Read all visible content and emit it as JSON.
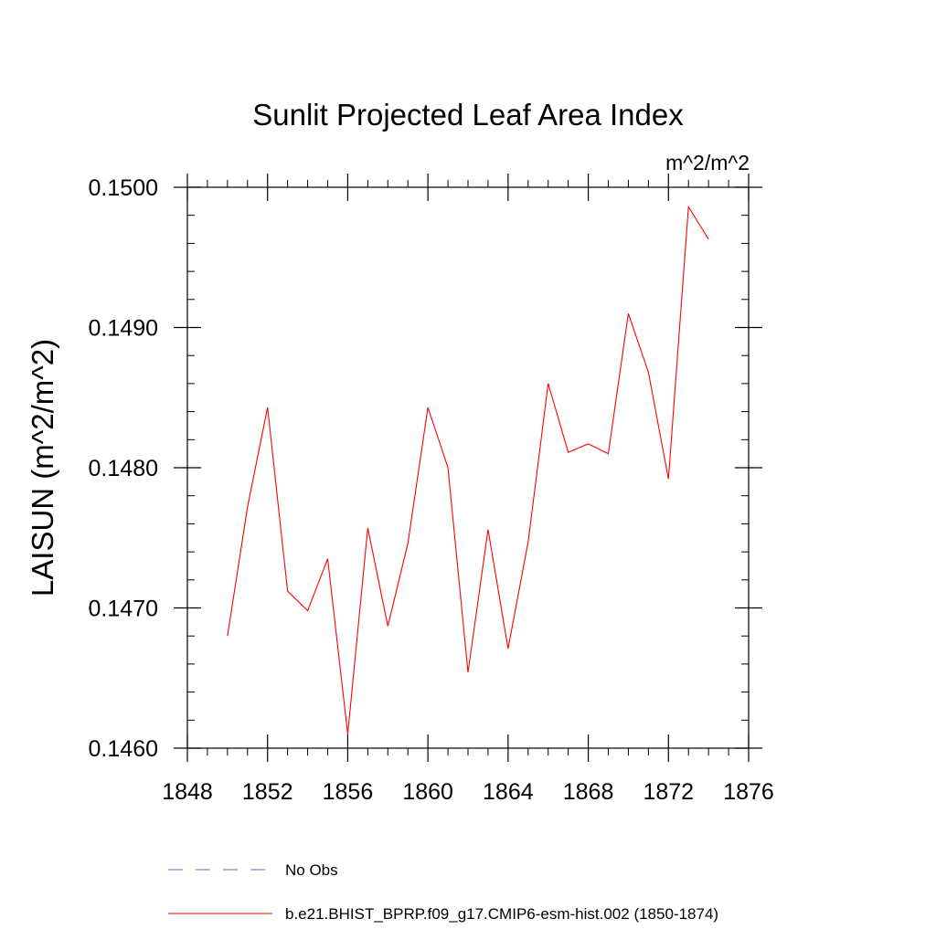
{
  "chart_data": {
    "type": "line",
    "title": "Sunlit Projected Leaf Area Index",
    "units": "m^2/m^2",
    "ylabel": "LAISUN  (m^2/m^2)",
    "xlabel": "",
    "xlim": [
      1848,
      1876
    ],
    "ylim": [
      0.146,
      0.15
    ],
    "x_ticks": [
      1848,
      1852,
      1856,
      1860,
      1864,
      1868,
      1872,
      1876
    ],
    "x_tick_labels": [
      "1848",
      "1852",
      "1856",
      "1860",
      "1864",
      "1868",
      "1872",
      "1876"
    ],
    "x_minor_step": 1,
    "y_ticks": [
      0.146,
      0.147,
      0.148,
      0.149,
      0.15
    ],
    "y_tick_labels": [
      "0.1460",
      "0.1470",
      "0.1480",
      "0.1490",
      "0.1500"
    ],
    "y_minor_step": 0.0002,
    "grid": false,
    "series": [
      {
        "name": "b.e21.BHIST_BPRP.f09_g17.CMIP6-esm-hist.002 (1850-1874)",
        "color": "#ff0000",
        "style": "solid",
        "x": [
          1850,
          1851,
          1852,
          1853,
          1854,
          1855,
          1856,
          1857,
          1858,
          1859,
          1860,
          1861,
          1862,
          1863,
          1864,
          1865,
          1866,
          1867,
          1868,
          1869,
          1870,
          1871,
          1872,
          1873,
          1874
        ],
        "values": [
          0.1468,
          0.14772,
          0.14843,
          0.14712,
          0.14698,
          0.14735,
          0.1461,
          0.14757,
          0.14687,
          0.14746,
          0.14843,
          0.148,
          0.14654,
          0.14756,
          0.14671,
          0.14747,
          0.1486,
          0.14811,
          0.14817,
          0.1481,
          0.1491,
          0.14868,
          0.14792,
          0.14986,
          0.14963
        ]
      }
    ],
    "legend": [
      {
        "label": "No Obs",
        "color": "#6666bb",
        "style": "dashed"
      },
      {
        "label": "b.e21.BHIST_BPRP.f09_g17.CMIP6-esm-hist.002 (1850-1874)",
        "color": "#ff0000",
        "style": "solid"
      }
    ],
    "legend_position": "bottom"
  }
}
